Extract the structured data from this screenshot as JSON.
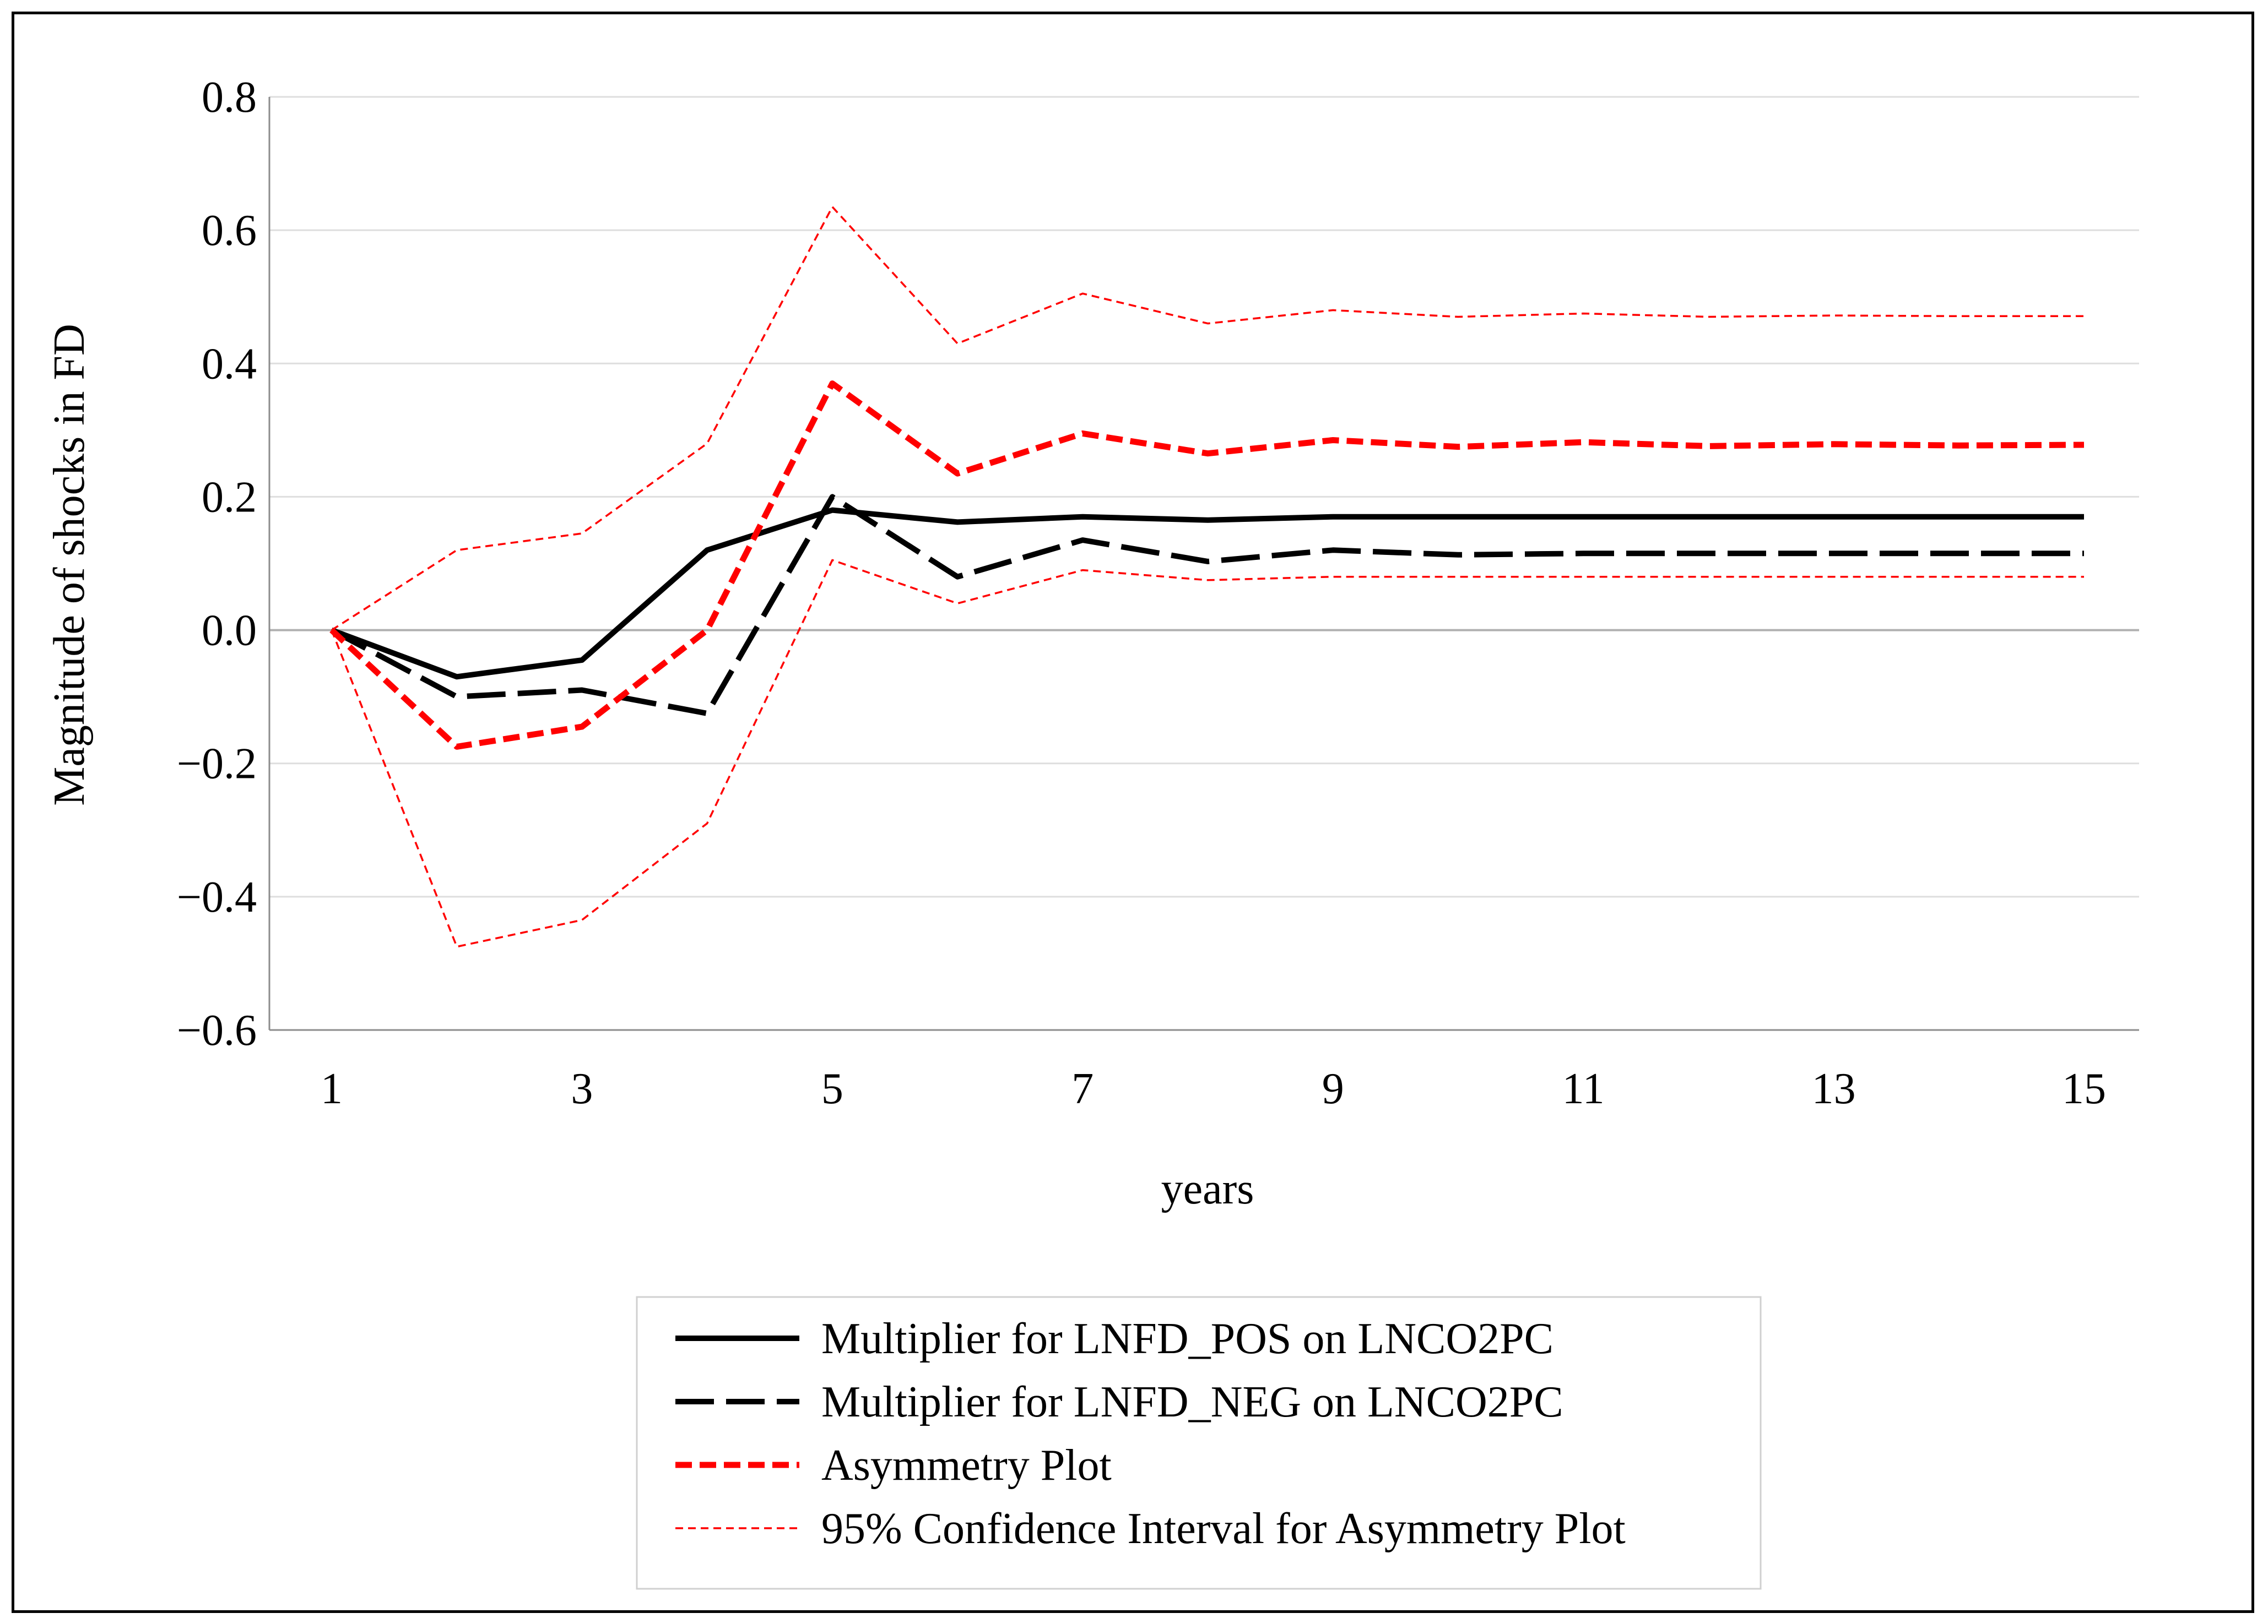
{
  "chart_data": {
    "type": "line",
    "title": "",
    "xlabel": "years",
    "ylabel": "Magnitude of shocks in FD",
    "xlim": [
      1,
      15
    ],
    "ylim": [
      -0.6,
      0.8
    ],
    "x": [
      1,
      2,
      3,
      4,
      5,
      6,
      7,
      8,
      9,
      10,
      11,
      12,
      13,
      14,
      15
    ],
    "x_ticks": [
      1,
      3,
      5,
      7,
      9,
      11,
      13,
      15
    ],
    "x_tick_labels": [
      "1",
      "3",
      "5",
      "7",
      "9",
      "11",
      "13",
      "15"
    ],
    "y_ticks": [
      -0.6,
      -0.4,
      -0.2,
      0.0,
      0.2,
      0.4,
      0.6,
      0.8
    ],
    "y_tick_labels": [
      "−0.6",
      "−0.4",
      "−0.2",
      "0.0",
      "0.2",
      "0.4",
      "0.6",
      "0.8"
    ],
    "grid": true,
    "legend_position": "bottom",
    "series": [
      {
        "name": "Multiplier for LNFD_POS on LNCO2PC",
        "style": "solid",
        "color": "#000000",
        "values": [
          0.0,
          -0.07,
          -0.045,
          0.12,
          0.18,
          0.162,
          0.17,
          0.165,
          0.17,
          0.17,
          0.17,
          0.17,
          0.17,
          0.17,
          0.17
        ]
      },
      {
        "name": "Multiplier for LNFD_NEG on LNCO2PC",
        "style": "long-dash",
        "color": "#000000",
        "values": [
          0.0,
          -0.1,
          -0.09,
          -0.125,
          0.2,
          0.08,
          0.135,
          0.103,
          0.12,
          0.113,
          0.115,
          0.115,
          0.115,
          0.115,
          0.115
        ]
      },
      {
        "name": "Asymmetry Plot",
        "style": "dash",
        "color": "#ff0000",
        "values": [
          0.0,
          -0.175,
          -0.145,
          0.0,
          0.37,
          0.235,
          0.295,
          0.265,
          0.285,
          0.275,
          0.282,
          0.276,
          0.279,
          0.277,
          0.278
        ]
      },
      {
        "name": "95% Confidence Interval for Asymmetry Plot",
        "style": "thin-dash",
        "color": "#ff0000",
        "values": [
          0.0,
          0.12,
          0.145,
          0.28,
          0.635,
          0.43,
          0.505,
          0.46,
          0.48,
          0.47,
          0.475,
          0.47,
          0.472,
          0.471,
          0.471
        ]
      },
      {
        "name": "",
        "style": "thin-dash",
        "color": "#ff0000",
        "values": [
          0.0,
          -0.475,
          -0.435,
          -0.29,
          0.105,
          0.04,
          0.09,
          0.075,
          0.08,
          0.08,
          0.08,
          0.08,
          0.08,
          0.08,
          0.08
        ]
      }
    ]
  }
}
